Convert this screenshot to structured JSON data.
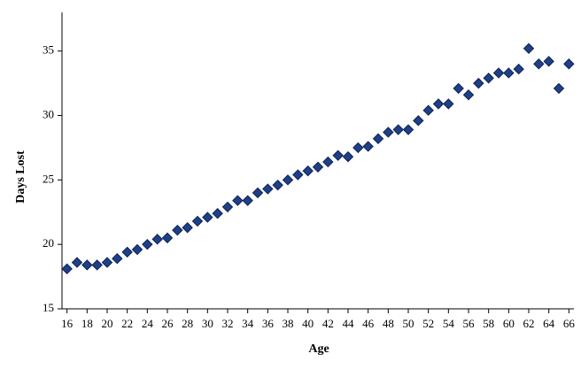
{
  "chart_data": {
    "type": "scatter",
    "x_label": "Age",
    "y_label": "Days Lost",
    "x": [
      16,
      17,
      18,
      19,
      20,
      21,
      22,
      23,
      24,
      25,
      26,
      27,
      28,
      29,
      30,
      31,
      32,
      33,
      34,
      35,
      36,
      37,
      38,
      39,
      40,
      41,
      42,
      43,
      44,
      45,
      46,
      47,
      48,
      49,
      50,
      51,
      52,
      53,
      54,
      55,
      56,
      57,
      58,
      59,
      60,
      61,
      62,
      63,
      64,
      65,
      66
    ],
    "values": [
      18.1,
      18.6,
      18.4,
      18.4,
      18.6,
      18.9,
      19.4,
      19.6,
      20.0,
      20.4,
      20.5,
      21.1,
      21.3,
      21.8,
      22.1,
      22.4,
      22.9,
      23.4,
      23.4,
      24.0,
      24.3,
      24.6,
      25.0,
      25.4,
      25.7,
      26.0,
      26.4,
      26.9,
      26.8,
      27.5,
      27.6,
      28.2,
      28.7,
      28.9,
      28.9,
      29.6,
      30.4,
      30.9,
      30.9,
      32.1,
      31.6,
      32.5,
      32.9,
      33.3,
      33.3,
      33.6,
      35.2,
      34.0,
      34.2,
      32.1,
      34.0
    ],
    "color": "#1f3f86",
    "xlim": [
      15.5,
      66.5
    ],
    "xticks": [
      16,
      18,
      20,
      22,
      24,
      26,
      28,
      30,
      32,
      34,
      36,
      38,
      40,
      42,
      44,
      46,
      48,
      50,
      52,
      54,
      56,
      58,
      60,
      62,
      64,
      66
    ],
    "ylim": [
      15,
      38
    ],
    "yticks": [
      15,
      20,
      25,
      30,
      35
    ]
  }
}
